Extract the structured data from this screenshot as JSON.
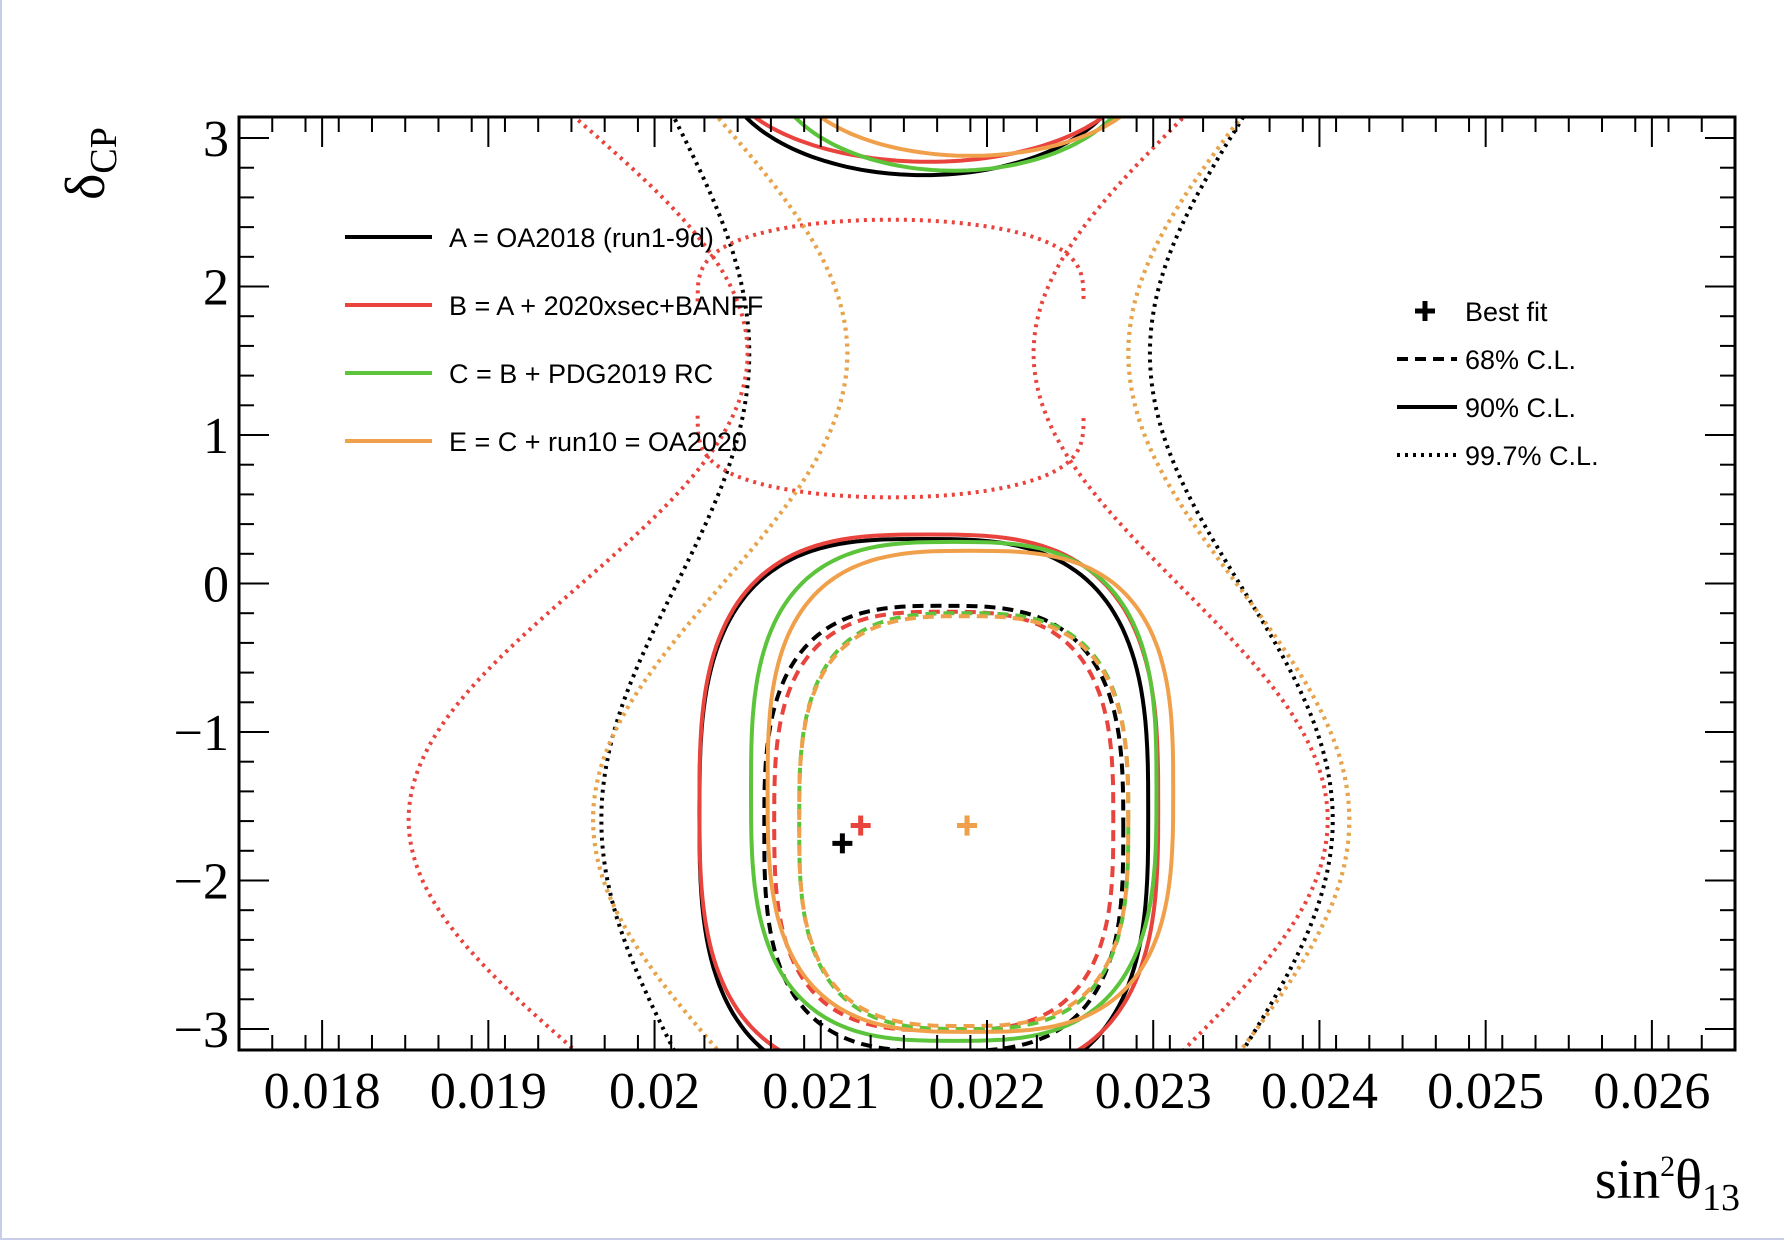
{
  "chart_data": {
    "type": "line",
    "subtype": "contour",
    "xlim": [
      0.0175,
      0.0265
    ],
    "ylim": [
      -3.14159,
      3.14159
    ],
    "xticks": [
      {
        "value": 0.018,
        "label": "0.018"
      },
      {
        "value": 0.019,
        "label": "0.019"
      },
      {
        "value": 0.02,
        "label": "0.02"
      },
      {
        "value": 0.021,
        "label": "0.021"
      },
      {
        "value": 0.022,
        "label": "0.022"
      },
      {
        "value": 0.023,
        "label": "0.023"
      },
      {
        "value": 0.024,
        "label": "0.024"
      },
      {
        "value": 0.025,
        "label": "0.025"
      },
      {
        "value": 0.026,
        "label": "0.026"
      }
    ],
    "yticks": [
      {
        "value": -3,
        "label": "−3"
      },
      {
        "value": -2,
        "label": "−2"
      },
      {
        "value": -1,
        "label": "−1"
      },
      {
        "value": 0,
        "label": "0"
      },
      {
        "value": 1,
        "label": "1"
      },
      {
        "value": 2,
        "label": "2"
      },
      {
        "value": 3,
        "label": "3"
      }
    ],
    "xlabel": {
      "main": "sin",
      "sup": "2",
      "mid": "θ",
      "sub": "13"
    },
    "ylabel": {
      "main": "δ",
      "sub": "CP"
    },
    "grid": false,
    "legend_placement": "top-left",
    "series": [
      {
        "name": "A = OA2018 (run1-9d)",
        "color": "#000000",
        "best_fit": [
          0.02113,
          -1.75
        ],
        "contours": [
          {
            "level": "68%",
            "style": "dashed",
            "cx": 0.02174,
            "cy": -1.65,
            "rx": 0.00108,
            "ry": 1.5,
            "p": 3
          },
          {
            "level": "90%",
            "style": "solid",
            "cx": 0.02162,
            "cy": -1.55,
            "rx": 0.00135,
            "ry": 1.85,
            "p": 3,
            "wrap_top": 2.75
          },
          {
            "level": "99.7%",
            "style": "dotted",
            "band": [
              0.01968,
              0.02408,
              0.02057,
              0.02298
            ]
          }
        ]
      },
      {
        "name": "B = A + 2020xsec+BANFF",
        "color": "#e8433c",
        "best_fit": [
          0.02124,
          -1.63
        ],
        "contours": [
          {
            "level": "68%",
            "style": "dashed",
            "cx": 0.02174,
            "cy": -1.6,
            "rx": 0.00102,
            "ry": 1.41,
            "p": 3
          },
          {
            "level": "90%",
            "style": "solid",
            "cx": 0.02165,
            "cy": -1.5,
            "rx": 0.00138,
            "ry": 1.83,
            "p": 3,
            "wrap_top": 2.84
          },
          {
            "level": "99.7%",
            "style": "dotted",
            "band": [
              0.01852,
              0.02405,
              0.02056,
              0.02228
            ]
          }
        ]
      },
      {
        "name": "C = B + PDG2019 RC",
        "color": "#5bc43b",
        "best_fit": [
          0.02188,
          -1.63
        ],
        "contours": [
          {
            "level": "68%",
            "style": "dashed",
            "cx": 0.02186,
            "cy": -1.6,
            "rx": 0.00099,
            "ry": 1.4,
            "p": 3
          },
          {
            "level": "90%",
            "style": "solid",
            "cx": 0.0218,
            "cy": -1.4,
            "rx": 0.00122,
            "ry": 1.68,
            "p": 3,
            "wrap_top": 2.78
          },
          {
            "level": "99.7%",
            "style": "dotted",
            "band": [
              0.01963,
              0.02418,
              0.02116,
              0.02285
            ]
          }
        ]
      },
      {
        "name": "E = C + run10 = OA2020",
        "color": "#f0a04b",
        "best_fit": [
          0.02188,
          -1.63
        ],
        "contours": [
          {
            "level": "68%",
            "style": "dashed",
            "cx": 0.02186,
            "cy": -1.6,
            "rx": 0.00099,
            "ry": 1.38,
            "p": 3
          },
          {
            "level": "90%",
            "style": "solid",
            "cx": 0.0219,
            "cy": -1.4,
            "rx": 0.00122,
            "ry": 1.62,
            "p": 3,
            "wrap_top": 2.88
          },
          {
            "level": "99.7%",
            "style": "dotted",
            "band": [
              0.01963,
              0.02418,
              0.02116,
              0.02285
            ]
          }
        ]
      }
    ],
    "style_legend": [
      {
        "label": "Best fit",
        "style": "marker"
      },
      {
        "label": "68% C.L.",
        "style": "dashed"
      },
      {
        "label": "90% C.L.",
        "style": "solid"
      },
      {
        "label": "99.7% C.L.",
        "style": "dotted"
      }
    ]
  }
}
